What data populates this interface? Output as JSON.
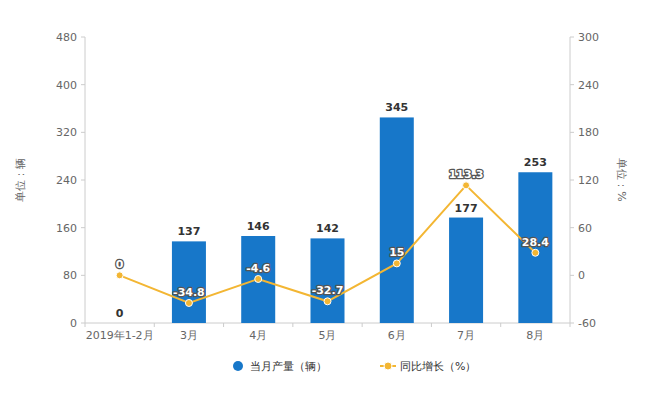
{
  "chart_data": {
    "type": "bar",
    "categories": [
      "2019年1-2月",
      "3月",
      "4月",
      "5月",
      "6月",
      "7月",
      "8月"
    ],
    "series": [
      {
        "name": "当月产量（辆）",
        "type": "bar",
        "color": "#1777c9",
        "values": [
          0,
          137,
          146,
          142,
          345,
          177,
          253
        ]
      },
      {
        "name": "同比增长（%）",
        "type": "line",
        "axis": "y2",
        "color": "#f3b633",
        "marker": "circle",
        "values": [
          0,
          -34.8,
          -4.6,
          -32.7,
          15,
          113.3,
          28.4
        ]
      }
    ],
    "ylabel": "单位：辆",
    "y2label": "单位：%",
    "ylim": [
      0,
      480
    ],
    "yticks": [
      0,
      80,
      160,
      240,
      320,
      400,
      480
    ],
    "y2lim": [
      -60,
      300
    ],
    "y2ticks": [
      -60,
      0,
      60,
      120,
      180,
      240,
      300
    ],
    "data_labels": true,
    "grid": false,
    "legend": "bottom"
  }
}
